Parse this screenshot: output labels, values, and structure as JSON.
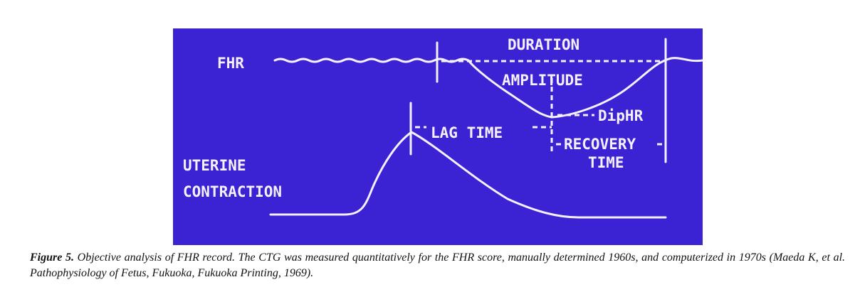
{
  "figure": {
    "labels": {
      "fhr": "FHR",
      "duration": "DURATION",
      "amplitude": "AMPLITUDE",
      "dip_hr": "DipHR",
      "lag_time": "LAG TIME",
      "recovery_time": [
        "RECOVERY",
        "TIME"
      ],
      "uterine_contraction": [
        "UTERINE",
        "CONTRACTION"
      ]
    },
    "caption": {
      "label": "Figure 5.",
      "text": "Objective analysis of FHR record. The CTG was measured quantitatively for the FHR score, manually determined 1960s, and computerized in 1970s (Maeda K, et al. Pathophysiology of Fetus, Fukuoka, Fukuoka Printing, 1969)."
    }
  }
}
